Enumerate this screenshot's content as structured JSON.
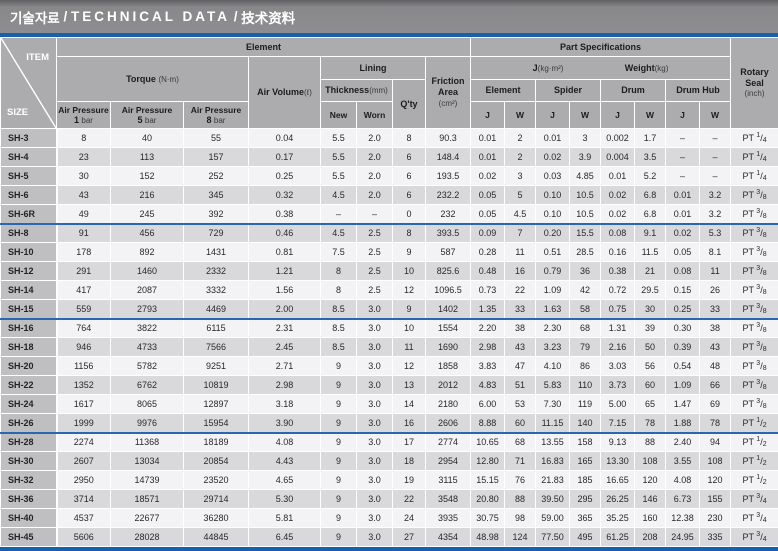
{
  "title": {
    "ko": "기술자료",
    "sep": "/",
    "en": "TECHNICAL DATA",
    "zh": "技术资料"
  },
  "colors": {
    "accent_blue": "#1561ae",
    "header_gray": "#acacae",
    "title_gray": "#88888b",
    "row_light": "#f3f3f5",
    "row_dark": "#d9d9db",
    "size_col_gray": "#bfbfc1"
  },
  "header": {
    "item": "ITEM",
    "size": "SIZE",
    "element_group": "Element",
    "part_specs_group": "Part Specifications",
    "torque_label": "Torque",
    "torque_unit": "(N·m)",
    "air_pressures": [
      {
        "label": "Air Pressure",
        "num": "1",
        "unit": "bar"
      },
      {
        "label": "Air Pressure",
        "num": "5",
        "unit": "bar"
      },
      {
        "label": "Air Pressure",
        "num": "8",
        "unit": "bar"
      }
    ],
    "air_volume_label": "Air Volume",
    "air_volume_unit": "(ℓ)",
    "lining": "Lining",
    "thickness_label": "Thickness",
    "thickness_unit": "(mm)",
    "new": "New",
    "worn": "Worn",
    "qty": "Q'ty",
    "friction_line1": "Friction",
    "friction_line2": "Area",
    "friction_unit": "(cm²)",
    "j_label": "J",
    "j_unit": "(kg·m²)",
    "weight_label": "Weight",
    "weight_unit": "(kg)",
    "groups": [
      "Element",
      "Spider",
      "Drum",
      "Drum Hub"
    ],
    "col_j": "J",
    "col_w": "W",
    "rotary_line1": "Rotary",
    "rotary_line2": "Seal",
    "rotary_unit": "(inch)"
  },
  "rows": [
    {
      "size": "SH-3",
      "values": [
        "8",
        "40",
        "55",
        "0.04",
        "5.5",
        "2.0",
        "8",
        "90.3",
        "0.01",
        "2",
        "0.01",
        "3",
        "0.002",
        "1.7",
        "–",
        "–"
      ],
      "seal": {
        "prefix": "PT",
        "num": "1",
        "den": "4"
      },
      "divider_after": false
    },
    {
      "size": "SH-4",
      "values": [
        "23",
        "113",
        "157",
        "0.17",
        "5.5",
        "2.0",
        "6",
        "148.4",
        "0.01",
        "2",
        "0.02",
        "3.9",
        "0.004",
        "3.5",
        "–",
        "–"
      ],
      "seal": {
        "prefix": "PT",
        "num": "1",
        "den": "4"
      },
      "divider_after": false
    },
    {
      "size": "SH-5",
      "values": [
        "30",
        "152",
        "252",
        "0.25",
        "5.5",
        "2.0",
        "6",
        "193.5",
        "0.02",
        "3",
        "0.03",
        "4.85",
        "0.01",
        "5.2",
        "–",
        "–"
      ],
      "seal": {
        "prefix": "PT",
        "num": "1",
        "den": "4"
      },
      "divider_after": false
    },
    {
      "size": "SH-6",
      "values": [
        "43",
        "216",
        "345",
        "0.32",
        "4.5",
        "2.0",
        "6",
        "232.2",
        "0.05",
        "5",
        "0.10",
        "10.5",
        "0.02",
        "6.8",
        "0.01",
        "3.2"
      ],
      "seal": {
        "prefix": "PT",
        "num": "3",
        "den": "8"
      },
      "divider_after": false
    },
    {
      "size": "SH-6R",
      "values": [
        "49",
        "245",
        "392",
        "0.38",
        "–",
        "–",
        "0",
        "232",
        "0.05",
        "4.5",
        "0.10",
        "10.5",
        "0.02",
        "6.8",
        "0.01",
        "3.2"
      ],
      "seal": {
        "prefix": "PT",
        "num": "3",
        "den": "8"
      },
      "divider_after": true
    },
    {
      "size": "SH-8",
      "values": [
        "91",
        "456",
        "729",
        "0.46",
        "4.5",
        "2.5",
        "8",
        "393.5",
        "0.09",
        "7",
        "0.20",
        "15.5",
        "0.08",
        "9.1",
        "0.02",
        "5.3"
      ],
      "seal": {
        "prefix": "PT",
        "num": "3",
        "den": "8"
      },
      "divider_after": false
    },
    {
      "size": "SH-10",
      "values": [
        "178",
        "892",
        "1431",
        "0.81",
        "7.5",
        "2.5",
        "9",
        "587",
        "0.28",
        "11",
        "0.51",
        "28.5",
        "0.16",
        "11.5",
        "0.05",
        "8.1"
      ],
      "seal": {
        "prefix": "PT",
        "num": "3",
        "den": "8"
      },
      "divider_after": false
    },
    {
      "size": "SH-12",
      "values": [
        "291",
        "1460",
        "2332",
        "1.21",
        "8",
        "2.5",
        "10",
        "825.6",
        "0.48",
        "16",
        "0.79",
        "36",
        "0.38",
        "21",
        "0.08",
        "11"
      ],
      "seal": {
        "prefix": "PT",
        "num": "3",
        "den": "8"
      },
      "divider_after": false
    },
    {
      "size": "SH-14",
      "values": [
        "417",
        "2087",
        "3332",
        "1.56",
        "8",
        "2.5",
        "12",
        "1096.5",
        "0.73",
        "22",
        "1.09",
        "42",
        "0.72",
        "29.5",
        "0.15",
        "26"
      ],
      "seal": {
        "prefix": "PT",
        "num": "3",
        "den": "8"
      },
      "divider_after": false
    },
    {
      "size": "SH-15",
      "values": [
        "559",
        "2793",
        "4469",
        "2.00",
        "8.5",
        "3.0",
        "9",
        "1402",
        "1.35",
        "33",
        "1.63",
        "58",
        "0.75",
        "30",
        "0.25",
        "33"
      ],
      "seal": {
        "prefix": "PT",
        "num": "3",
        "den": "8"
      },
      "divider_after": true
    },
    {
      "size": "SH-16",
      "values": [
        "764",
        "3822",
        "6115",
        "2.31",
        "8.5",
        "3.0",
        "10",
        "1554",
        "2.20",
        "38",
        "2.30",
        "68",
        "1.31",
        "39",
        "0.30",
        "38"
      ],
      "seal": {
        "prefix": "PT",
        "num": "3",
        "den": "8"
      },
      "divider_after": false
    },
    {
      "size": "SH-18",
      "values": [
        "946",
        "4733",
        "7566",
        "2.45",
        "8.5",
        "3.0",
        "11",
        "1690",
        "2.98",
        "43",
        "3.23",
        "79",
        "2.16",
        "50",
        "0.39",
        "43"
      ],
      "seal": {
        "prefix": "PT",
        "num": "3",
        "den": "8"
      },
      "divider_after": false
    },
    {
      "size": "SH-20",
      "values": [
        "1156",
        "5782",
        "9251",
        "2.71",
        "9",
        "3.0",
        "12",
        "1858",
        "3.83",
        "47",
        "4.10",
        "86",
        "3.03",
        "56",
        "0.54",
        "48"
      ],
      "seal": {
        "prefix": "PT",
        "num": "3",
        "den": "8"
      },
      "divider_after": false
    },
    {
      "size": "SH-22",
      "values": [
        "1352",
        "6762",
        "10819",
        "2.98",
        "9",
        "3.0",
        "13",
        "2012",
        "4.83",
        "51",
        "5.83",
        "110",
        "3.73",
        "60",
        "1.09",
        "66"
      ],
      "seal": {
        "prefix": "PT",
        "num": "3",
        "den": "8"
      },
      "divider_after": false
    },
    {
      "size": "SH-24",
      "values": [
        "1617",
        "8065",
        "12897",
        "3.18",
        "9",
        "3.0",
        "14",
        "2180",
        "6.00",
        "53",
        "7.30",
        "119",
        "5.00",
        "65",
        "1.47",
        "69"
      ],
      "seal": {
        "prefix": "PT",
        "num": "3",
        "den": "8"
      },
      "divider_after": false
    },
    {
      "size": "SH-26",
      "values": [
        "1999",
        "9976",
        "15954",
        "3.90",
        "9",
        "3.0",
        "16",
        "2606",
        "8.88",
        "60",
        "11.15",
        "140",
        "7.15",
        "78",
        "1.88",
        "78"
      ],
      "seal": {
        "prefix": "PT",
        "num": "1",
        "den": "2"
      },
      "divider_after": true
    },
    {
      "size": "SH-28",
      "values": [
        "2274",
        "11368",
        "18189",
        "4.08",
        "9",
        "3.0",
        "17",
        "2774",
        "10.65",
        "68",
        "13.55",
        "158",
        "9.13",
        "88",
        "2.40",
        "94"
      ],
      "seal": {
        "prefix": "PT",
        "num": "1",
        "den": "2"
      },
      "divider_after": false
    },
    {
      "size": "SH-30",
      "values": [
        "2607",
        "13034",
        "20854",
        "4.43",
        "9",
        "3.0",
        "18",
        "2954",
        "12.80",
        "71",
        "16.83",
        "165",
        "13.30",
        "108",
        "3.55",
        "108"
      ],
      "seal": {
        "prefix": "PT",
        "num": "1",
        "den": "2"
      },
      "divider_after": false
    },
    {
      "size": "SH-32",
      "values": [
        "2950",
        "14739",
        "23520",
        "4.65",
        "9",
        "3.0",
        "19",
        "3115",
        "15.15",
        "76",
        "21.83",
        "185",
        "16.65",
        "120",
        "4.08",
        "120"
      ],
      "seal": {
        "prefix": "PT",
        "num": "1",
        "den": "2"
      },
      "divider_after": false
    },
    {
      "size": "SH-36",
      "values": [
        "3714",
        "18571",
        "29714",
        "5.30",
        "9",
        "3.0",
        "22",
        "3548",
        "20.80",
        "88",
        "39.50",
        "295",
        "26.25",
        "146",
        "6.73",
        "155"
      ],
      "seal": {
        "prefix": "PT",
        "num": "3",
        "den": "4"
      },
      "divider_after": false
    },
    {
      "size": "SH-40",
      "values": [
        "4537",
        "22677",
        "36280",
        "5.81",
        "9",
        "3.0",
        "24",
        "3935",
        "30.75",
        "98",
        "59.00",
        "365",
        "35.25",
        "160",
        "12.38",
        "230"
      ],
      "seal": {
        "prefix": "PT",
        "num": "3",
        "den": "4"
      },
      "divider_after": false
    },
    {
      "size": "SH-45",
      "values": [
        "5606",
        "28028",
        "44845",
        "6.45",
        "9",
        "3.0",
        "27",
        "4354",
        "48.98",
        "124",
        "77.50",
        "495",
        "61.25",
        "208",
        "24.95",
        "335"
      ],
      "seal": {
        "prefix": "PT",
        "num": "3",
        "den": "4"
      },
      "divider_after": false
    }
  ]
}
